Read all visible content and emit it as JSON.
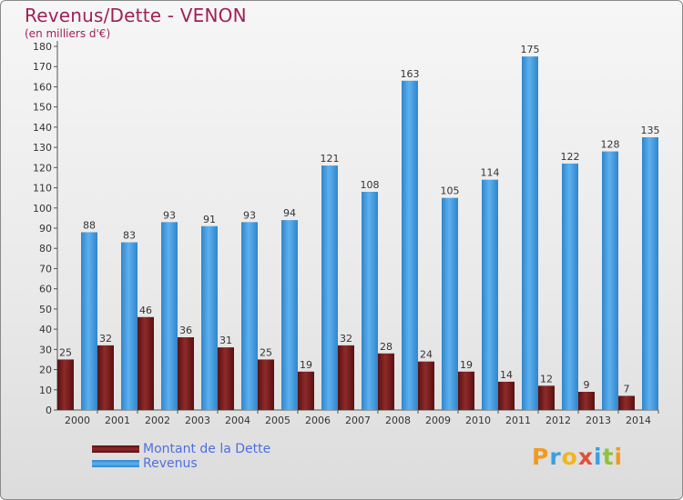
{
  "header": {
    "title": "Revenus/Dette - VENON",
    "subtitle": "(en milliers d'€)"
  },
  "legend": {
    "items": [
      {
        "label": "Montant de la Dette",
        "color": "#7a1e1e"
      },
      {
        "label": "Revenus",
        "color": "#4a9fe0"
      }
    ]
  },
  "brand": {
    "letters": [
      {
        "ch": "P",
        "color": "#f29a1e"
      },
      {
        "ch": "r",
        "color": "#3a9fe0"
      },
      {
        "ch": "o",
        "color": "#f2b51e"
      },
      {
        "ch": "x",
        "color": "#e0503a"
      },
      {
        "ch": "i",
        "color": "#3a9fe0"
      },
      {
        "ch": "t",
        "color": "#8cc43a"
      },
      {
        "ch": "i",
        "color": "#f29a1e"
      }
    ]
  },
  "chart_data": {
    "type": "bar",
    "title": "Revenus/Dette - VENON",
    "subtitle": "(en milliers d'€)",
    "categories": [
      "2000",
      "2001",
      "2002",
      "2003",
      "2004",
      "2005",
      "2006",
      "2007",
      "2008",
      "2009",
      "2010",
      "2011",
      "2012",
      "2013",
      "2014"
    ],
    "series": [
      {
        "name": "Montant de la Dette",
        "color": "#7a1e1e",
        "values": [
          25,
          32,
          46,
          36,
          31,
          25,
          19,
          32,
          28,
          24,
          19,
          14,
          12,
          9,
          7
        ]
      },
      {
        "name": "Revenus",
        "color": "#4a9fe0",
        "values": [
          88,
          83,
          93,
          91,
          93,
          94,
          121,
          108,
          163,
          105,
          114,
          175,
          122,
          128,
          135
        ]
      }
    ],
    "ylim": [
      0,
      180
    ],
    "ytick_step": 10,
    "grid": false,
    "legend_position": "bottom-left"
  }
}
